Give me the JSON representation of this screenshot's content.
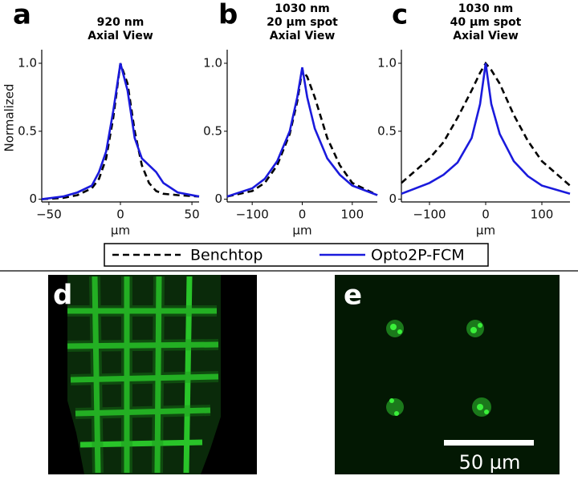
{
  "chart_data": [
    {
      "type": "line",
      "panel": "a",
      "title_lines": [
        "920 nm",
        "Axial View"
      ],
      "ylabel": "Normalized",
      "xlabel": "µm",
      "x": [
        -55,
        -40,
        -30,
        -20,
        -15,
        -10,
        -5,
        0,
        5,
        10,
        15,
        20,
        25,
        30,
        40,
        55
      ],
      "series": [
        {
          "name": "Benchtop",
          "color": "#000000",
          "style": "dashed",
          "values": [
            0,
            0.01,
            0.03,
            0.08,
            0.15,
            0.3,
            0.6,
            1.0,
            0.85,
            0.5,
            0.25,
            0.12,
            0.06,
            0.04,
            0.03,
            0.02
          ]
        },
        {
          "name": "Opto2P-FCM",
          "color": "#1a1adc",
          "style": "solid",
          "values": [
            0,
            0.02,
            0.05,
            0.1,
            0.2,
            0.35,
            0.65,
            1.0,
            0.8,
            0.45,
            0.3,
            0.25,
            0.2,
            0.12,
            0.05,
            0.02
          ]
        }
      ],
      "xlim": [
        -55,
        55
      ],
      "xticks": [
        {
          "value": -50,
          "label": "−50"
        },
        0,
        50
      ],
      "ylim": [
        -0.02,
        1.1
      ],
      "yticks": [
        0,
        0.5,
        {
          "value": 1,
          "label": "1.0"
        }
      ]
    },
    {
      "type": "line",
      "panel": "b",
      "title_lines": [
        "1030 nm",
        "20 µm spot",
        "Axial View"
      ],
      "xlabel": "µm",
      "x": [
        -150,
        -100,
        -75,
        -50,
        -25,
        -10,
        0,
        10,
        25,
        50,
        75,
        100,
        150
      ],
      "series": [
        {
          "name": "Benchtop",
          "color": "#000000",
          "style": "dashed",
          "values": [
            0.02,
            0.06,
            0.12,
            0.25,
            0.48,
            0.72,
            0.95,
            0.9,
            0.75,
            0.45,
            0.25,
            0.12,
            0.03
          ]
        },
        {
          "name": "Opto2P-FCM",
          "color": "#1a1adc",
          "style": "solid",
          "values": [
            0.02,
            0.08,
            0.15,
            0.28,
            0.5,
            0.75,
            0.97,
            0.75,
            0.52,
            0.3,
            0.18,
            0.1,
            0.03
          ]
        }
      ],
      "xlim": [
        -150,
        150
      ],
      "xticks": [
        {
          "value": -100,
          "label": "−100"
        },
        0,
        100
      ],
      "ylim": [
        -0.02,
        1.1
      ],
      "yticks": [
        0,
        0.5,
        {
          "value": 1,
          "label": "1.0"
        }
      ]
    },
    {
      "type": "line",
      "panel": "c",
      "title_lines": [
        "1030 nm",
        "40 µm spot",
        "Axial View"
      ],
      "xlabel": "µm",
      "x": [
        -150,
        -100,
        -75,
        -50,
        -25,
        -10,
        0,
        10,
        25,
        50,
        75,
        100,
        150
      ],
      "series": [
        {
          "name": "Benchtop",
          "color": "#000000",
          "style": "dashed",
          "values": [
            0.12,
            0.3,
            0.42,
            0.6,
            0.8,
            0.93,
            1.0,
            0.95,
            0.85,
            0.62,
            0.43,
            0.28,
            0.1
          ]
        },
        {
          "name": "Opto2P-FCM",
          "color": "#1a1adc",
          "style": "solid",
          "values": [
            0.04,
            0.12,
            0.18,
            0.27,
            0.45,
            0.7,
            1.0,
            0.7,
            0.48,
            0.28,
            0.17,
            0.1,
            0.04
          ]
        }
      ],
      "xlim": [
        -150,
        150
      ],
      "xticks": [
        {
          "value": -100,
          "label": "−100"
        },
        0,
        100
      ],
      "ylim": [
        -0.02,
        1.1
      ],
      "yticks": [
        0,
        0.5,
        {
          "value": 1,
          "label": "1.0"
        }
      ]
    }
  ],
  "images": [
    {
      "panel": "d"
    },
    {
      "panel": "e",
      "scale_bar": "50 µm"
    }
  ]
}
